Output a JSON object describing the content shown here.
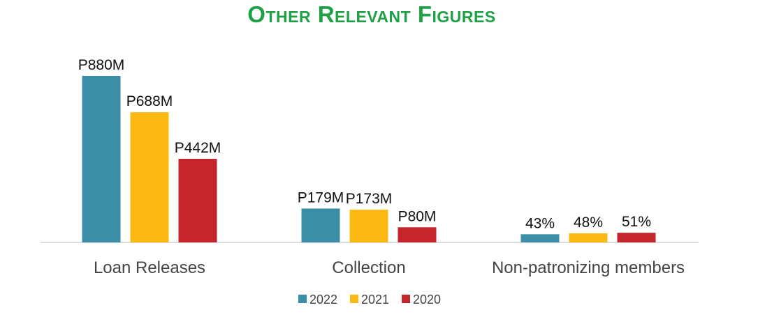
{
  "title": "Other Relevant Figures",
  "chart_data": {
    "type": "bar",
    "title": "Other Relevant Figures",
    "categories": [
      "Loan Releases",
      "Collection",
      "Non-patronizing members"
    ],
    "series": [
      {
        "name": "2022",
        "color": "#3a8fa6",
        "values": [
          880,
          179,
          43
        ],
        "labels": [
          "P880M",
          "P179M",
          "43%"
        ]
      },
      {
        "name": "2021",
        "color": "#fdb913",
        "values": [
          688,
          173,
          48
        ],
        "labels": [
          "P688M",
          "P173M",
          "48%"
        ]
      },
      {
        "name": "2020",
        "color": "#c5262e",
        "values": [
          442,
          80,
          51
        ],
        "labels": [
          "P442M",
          "P80M",
          "51%"
        ]
      }
    ],
    "ylim": [
      0,
      880
    ],
    "xlabel": "",
    "ylabel": "",
    "grid": false,
    "legend": "bottom",
    "note": "Non-patronizing members values are percentages drawn on the same scale as the peso amounts (in millions)"
  }
}
